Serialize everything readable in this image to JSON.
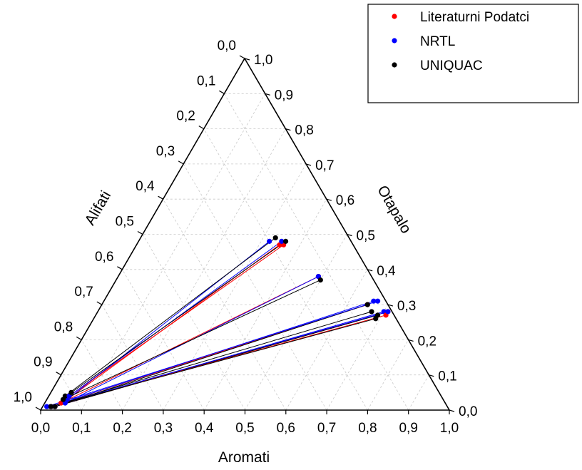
{
  "chart_data": {
    "type": "ternary",
    "axes": {
      "bottom": {
        "label": "Aromati"
      },
      "left": {
        "label": "Alifati"
      },
      "right": {
        "label": "Otapalo"
      }
    },
    "ticks": [
      "0,0",
      "0,1",
      "0,2",
      "0,3",
      "0,4",
      "0,5",
      "0,6",
      "0,7",
      "0,8",
      "0,9",
      "1,0"
    ],
    "grid": true,
    "legend_position": "top-right",
    "series": [
      {
        "name": "Literaturni Podatci",
        "color": "#ff0000"
      },
      {
        "name": "NRTL",
        "color": "#0000ff"
      },
      {
        "name": "UNIQUAC",
        "color": "#000000"
      }
    ],
    "tie_lines": [
      {
        "series": 0,
        "raffinate": {
          "aromati": 0.05,
          "alifati": 0.92,
          "otapalo": 0.03
        },
        "extract": {
          "aromati": 0.35,
          "alifati": 0.18,
          "otapalo": 0.47
        }
      },
      {
        "series": 1,
        "raffinate": {
          "aromati": 0.05,
          "alifati": 0.92,
          "otapalo": 0.03
        },
        "extract": {
          "aromati": 0.32,
          "alifati": 0.2,
          "otapalo": 0.48
        }
      },
      {
        "series": 2,
        "raffinate": {
          "aromati": 0.04,
          "alifati": 0.92,
          "otapalo": 0.04
        },
        "extract": {
          "aromati": 0.33,
          "alifati": 0.18,
          "otapalo": 0.49
        }
      },
      {
        "series": 0,
        "raffinate": {
          "aromati": 0.05,
          "alifati": 0.91,
          "otapalo": 0.04
        },
        "extract": {
          "aromati": 0.36,
          "alifati": 0.17,
          "otapalo": 0.47
        }
      },
      {
        "series": 1,
        "raffinate": {
          "aromati": 0.05,
          "alifati": 0.91,
          "otapalo": 0.04
        },
        "extract": {
          "aromati": 0.35,
          "alifati": 0.17,
          "otapalo": 0.48
        }
      },
      {
        "series": 2,
        "raffinate": {
          "aromati": 0.05,
          "alifati": 0.9,
          "otapalo": 0.05
        },
        "extract": {
          "aromati": 0.36,
          "alifati": 0.16,
          "otapalo": 0.48
        }
      },
      {
        "series": 0,
        "raffinate": {
          "aromati": 0.04,
          "alifati": 0.94,
          "otapalo": 0.02
        },
        "extract": {
          "aromati": 0.49,
          "alifati": 0.13,
          "otapalo": 0.38
        }
      },
      {
        "series": 1,
        "raffinate": {
          "aromati": 0.05,
          "alifati": 0.93,
          "otapalo": 0.02
        },
        "extract": {
          "aromati": 0.49,
          "alifati": 0.13,
          "otapalo": 0.38
        }
      },
      {
        "series": 2,
        "raffinate": {
          "aromati": 0.04,
          "alifati": 0.93,
          "otapalo": 0.03
        },
        "extract": {
          "aromati": 0.5,
          "alifati": 0.13,
          "otapalo": 0.37
        }
      },
      {
        "series": 0,
        "raffinate": {
          "aromati": 0.02,
          "alifati": 0.97,
          "otapalo": 0.01
        },
        "extract": {
          "aromati": 0.65,
          "alifati": 0.05,
          "otapalo": 0.3
        }
      },
      {
        "series": 1,
        "raffinate": {
          "aromati": 0.02,
          "alifati": 0.97,
          "otapalo": 0.01
        },
        "extract": {
          "aromati": 0.66,
          "alifati": 0.03,
          "otapalo": 0.31
        }
      },
      {
        "series": 2,
        "raffinate": {
          "aromati": 0.03,
          "alifati": 0.96,
          "otapalo": 0.01
        },
        "extract": {
          "aromati": 0.65,
          "alifati": 0.05,
          "otapalo": 0.3
        }
      },
      {
        "series": 0,
        "raffinate": {
          "aromati": 0.03,
          "alifati": 0.96,
          "otapalo": 0.01
        },
        "extract": {
          "aromati": 0.71,
          "alifati": 0.01,
          "otapalo": 0.28
        }
      },
      {
        "series": 1,
        "raffinate": {
          "aromati": 0.03,
          "alifati": 0.96,
          "otapalo": 0.01
        },
        "extract": {
          "aromati": 0.7,
          "alifati": 0.02,
          "otapalo": 0.28
        }
      },
      {
        "series": 2,
        "raffinate": {
          "aromati": 0.03,
          "alifati": 0.96,
          "otapalo": 0.01
        },
        "extract": {
          "aromati": 0.69,
          "alifati": 0.04,
          "otapalo": 0.27
        }
      },
      {
        "series": 0,
        "raffinate": {
          "aromati": 0.02,
          "alifati": 0.97,
          "otapalo": 0.01
        },
        "extract": {
          "aromati": 0.71,
          "alifati": 0.02,
          "otapalo": 0.27
        }
      },
      {
        "series": 1,
        "raffinate": {
          "aromati": 0.02,
          "alifati": 0.97,
          "otapalo": 0.01
        },
        "extract": {
          "aromati": 0.71,
          "alifati": 0.01,
          "otapalo": 0.28
        }
      },
      {
        "series": 2,
        "raffinate": {
          "aromati": 0.02,
          "alifati": 0.97,
          "otapalo": 0.01
        },
        "extract": {
          "aromati": 0.69,
          "alifati": 0.05,
          "otapalo": 0.26
        }
      },
      {
        "series": 1,
        "raffinate": {
          "aromati": 0.01,
          "alifati": 0.98,
          "otapalo": 0.01
        },
        "extract": {
          "aromati": 0.67,
          "alifati": 0.02,
          "otapalo": 0.31
        }
      },
      {
        "series": 2,
        "raffinate": {
          "aromati": 0.02,
          "alifati": 0.97,
          "otapalo": 0.01
        },
        "extract": {
          "aromati": 0.67,
          "alifati": 0.05,
          "otapalo": 0.28
        }
      }
    ]
  }
}
